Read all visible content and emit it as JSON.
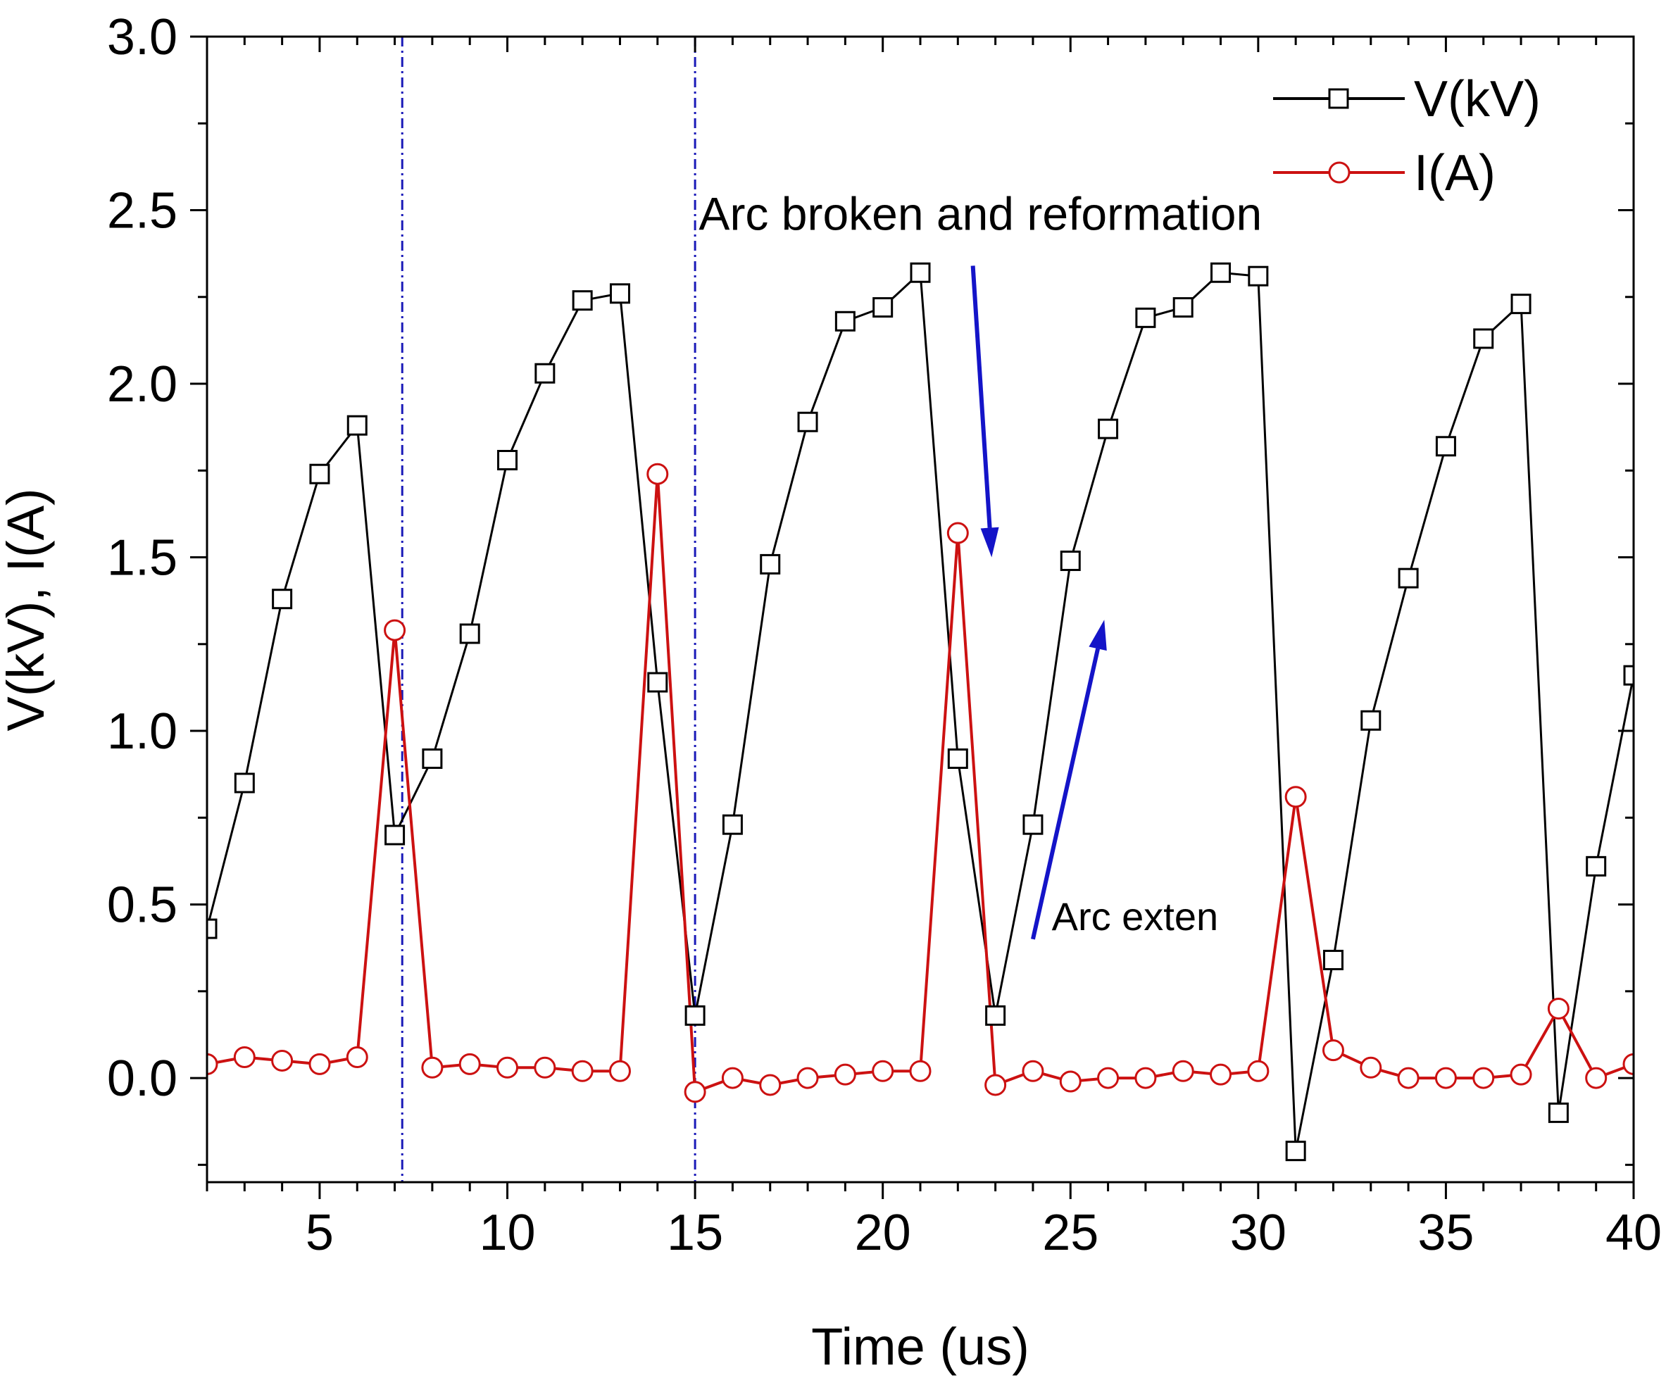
{
  "chart_data": {
    "type": "line",
    "title": "",
    "xlabel": "Time (us)",
    "ylabel": "V(kV), I(A)",
    "xlim": [
      2,
      40
    ],
    "ylim": [
      -0.3,
      3.0
    ],
    "x_ticks": [
      5,
      10,
      15,
      20,
      25,
      30,
      35,
      40
    ],
    "x_tick_labels": [
      "5",
      "10",
      "15",
      "20",
      "25",
      "30",
      "35",
      "40"
    ],
    "y_ticks": [
      0.0,
      0.5,
      1.0,
      1.5,
      2.0,
      2.5,
      3.0
    ],
    "y_tick_labels": [
      "0.0",
      "0.5",
      "1.0",
      "1.5",
      "2.0",
      "2.5",
      "3.0"
    ],
    "grid": false,
    "legend_position": "top-right",
    "x": [
      2,
      3,
      4,
      5,
      6,
      7,
      8,
      9,
      10,
      11,
      12,
      13,
      14,
      15,
      16,
      17,
      18,
      19,
      20,
      21,
      22,
      23,
      24,
      25,
      26,
      27,
      28,
      29,
      30,
      31,
      32,
      33,
      34,
      35,
      36,
      37,
      38,
      39,
      40
    ],
    "series": [
      {
        "name": "V(kV)",
        "color": "#000000",
        "marker": "square",
        "values": [
          0.43,
          0.85,
          1.38,
          1.74,
          1.88,
          0.7,
          0.92,
          1.28,
          1.78,
          2.03,
          2.24,
          2.26,
          1.14,
          0.18,
          0.73,
          1.48,
          1.89,
          2.18,
          2.22,
          2.32,
          0.92,
          0.18,
          0.73,
          1.49,
          1.87,
          2.19,
          2.22,
          2.32,
          2.31,
          -0.21,
          0.34,
          1.03,
          1.44,
          1.82,
          2.13,
          2.23,
          -0.1,
          0.61,
          1.16
        ]
      },
      {
        "name": "I(A)",
        "color": "#cc1111",
        "marker": "circle",
        "values": [
          0.04,
          0.06,
          0.05,
          0.04,
          0.06,
          1.29,
          0.03,
          0.04,
          0.03,
          0.03,
          0.02,
          0.02,
          1.74,
          -0.04,
          0.0,
          -0.02,
          0.0,
          0.01,
          0.02,
          0.02,
          1.57,
          -0.02,
          0.02,
          -0.01,
          0.0,
          0.0,
          0.02,
          0.01,
          0.02,
          0.81,
          0.08,
          0.03,
          0.0,
          0.0,
          0.0,
          0.01,
          0.2,
          0.0,
          0.04
        ]
      }
    ],
    "vertical_lines": [
      {
        "x": 7.2,
        "style": "dash-dot",
        "color": "#1a1ab8"
      },
      {
        "x": 15.0,
        "style": "dash-dot",
        "color": "#1a1ab8"
      }
    ],
    "annotations": [
      {
        "name": "arc-broken-label",
        "text": "Arc broken and reformation",
        "x": 15.1,
        "y": 2.5
      },
      {
        "name": "arc-exten-label",
        "text": "Arc exten",
        "x": 24.5,
        "y": 0.45
      }
    ],
    "arrows": [
      {
        "name": "arc-broken-arrow",
        "from": [
          22.4,
          2.34
        ],
        "to": [
          22.9,
          1.5
        ],
        "color": "#1414c8"
      },
      {
        "name": "arc-exten-arrow",
        "from": [
          24.0,
          0.4
        ],
        "to": [
          25.9,
          1.32
        ],
        "color": "#1414c8"
      }
    ]
  }
}
